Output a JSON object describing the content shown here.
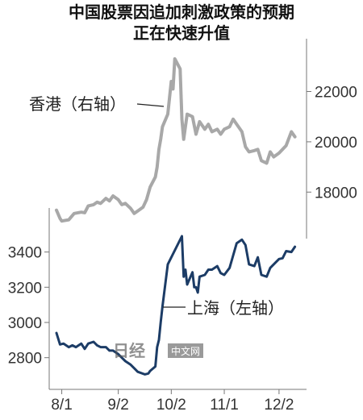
{
  "title_lines": [
    "中国股票因追加刺激政策的预期",
    "正在快速升值"
  ],
  "chart_data": {
    "type": "line",
    "title": "中国股票因追加刺激政策的预期 正在快速升值",
    "x_ticks": [
      "8/1",
      "9/2",
      "10/2",
      "11/1",
      "12/2"
    ],
    "x_range": [
      "2024-07-29",
      "2024-12-13"
    ],
    "left_axis": {
      "ticks": [
        2800,
        3000,
        3200,
        3400
      ],
      "range": [
        2620,
        3650
      ]
    },
    "right_axis": {
      "ticks": [
        18000,
        20000,
        22000
      ],
      "range": [
        16150,
        24100
      ]
    },
    "grid": false,
    "series": [
      {
        "name": "香港（右轴）",
        "axis": "right",
        "color": "#a8a8a8",
        "points": [
          [
            "2024-07-29",
            17280
          ],
          [
            "2024-07-31",
            16950
          ],
          [
            "2024-08-01",
            16850
          ],
          [
            "2024-08-05",
            16900
          ],
          [
            "2024-08-08",
            17150
          ],
          [
            "2024-08-12",
            17200
          ],
          [
            "2024-08-14",
            17180
          ],
          [
            "2024-08-16",
            17450
          ],
          [
            "2024-08-19",
            17500
          ],
          [
            "2024-08-21",
            17600
          ],
          [
            "2024-08-23",
            17550
          ],
          [
            "2024-08-26",
            17750
          ],
          [
            "2024-08-28",
            17650
          ],
          [
            "2024-08-30",
            17850
          ],
          [
            "2024-09-02",
            17700
          ],
          [
            "2024-09-04",
            17500
          ],
          [
            "2024-09-06",
            17550
          ],
          [
            "2024-09-09",
            17350
          ],
          [
            "2024-09-11",
            17150
          ],
          [
            "2024-09-13",
            17250
          ],
          [
            "2024-09-16",
            17400
          ],
          [
            "2024-09-18",
            17700
          ],
          [
            "2024-09-20",
            18200
          ],
          [
            "2024-09-23",
            18600
          ],
          [
            "2024-09-24",
            19000
          ],
          [
            "2024-09-25",
            19700
          ],
          [
            "2024-09-26",
            20100
          ],
          [
            "2024-09-27",
            20600
          ],
          [
            "2024-09-30",
            21100
          ],
          [
            "2024-10-02",
            22400
          ],
          [
            "2024-10-03",
            22100
          ],
          [
            "2024-10-04",
            23300
          ],
          [
            "2024-10-07",
            22900
          ],
          [
            "2024-10-08",
            20900
          ],
          [
            "2024-10-09",
            20100
          ],
          [
            "2024-10-11",
            21100
          ],
          [
            "2024-10-14",
            21000
          ],
          [
            "2024-10-16",
            20300
          ],
          [
            "2024-10-18",
            20800
          ],
          [
            "2024-10-21",
            20500
          ],
          [
            "2024-10-23",
            20700
          ],
          [
            "2024-10-25",
            20400
          ],
          [
            "2024-10-28",
            20500
          ],
          [
            "2024-10-30",
            20300
          ],
          [
            "2024-11-01",
            20500
          ],
          [
            "2024-11-04",
            20600
          ],
          [
            "2024-11-06",
            20900
          ],
          [
            "2024-11-08",
            20700
          ],
          [
            "2024-11-11",
            20400
          ],
          [
            "2024-11-13",
            19800
          ],
          [
            "2024-11-15",
            19600
          ],
          [
            "2024-11-18",
            19650
          ],
          [
            "2024-11-20",
            19700
          ],
          [
            "2024-11-22",
            19250
          ],
          [
            "2024-11-25",
            19150
          ],
          [
            "2024-11-27",
            19600
          ],
          [
            "2024-11-29",
            19400
          ],
          [
            "2024-12-02",
            19550
          ],
          [
            "2024-12-04",
            19700
          ],
          [
            "2024-12-06",
            19850
          ],
          [
            "2024-12-09",
            20400
          ],
          [
            "2024-12-11",
            20200
          ]
        ]
      },
      {
        "name": "上海（左轴）",
        "axis": "left",
        "color": "#1c3c66",
        "points": [
          [
            "2024-07-29",
            2940
          ],
          [
            "2024-07-31",
            2875
          ],
          [
            "2024-08-02",
            2880
          ],
          [
            "2024-08-05",
            2860
          ],
          [
            "2024-08-07",
            2870
          ],
          [
            "2024-08-09",
            2860
          ],
          [
            "2024-08-12",
            2880
          ],
          [
            "2024-08-14",
            2850
          ],
          [
            "2024-08-16",
            2880
          ],
          [
            "2024-08-19",
            2890
          ],
          [
            "2024-08-21",
            2870
          ],
          [
            "2024-08-23",
            2860
          ],
          [
            "2024-08-26",
            2860
          ],
          [
            "2024-08-28",
            2840
          ],
          [
            "2024-08-30",
            2840
          ],
          [
            "2024-09-02",
            2820
          ],
          [
            "2024-09-04",
            2800
          ],
          [
            "2024-09-06",
            2780
          ],
          [
            "2024-09-09",
            2760
          ],
          [
            "2024-09-11",
            2740
          ],
          [
            "2024-09-13",
            2720
          ],
          [
            "2024-09-17",
            2705
          ],
          [
            "2024-09-19",
            2710
          ],
          [
            "2024-09-20",
            2725
          ],
          [
            "2024-09-23",
            2750
          ],
          [
            "2024-09-24",
            2860
          ],
          [
            "2024-09-25",
            2900
          ],
          [
            "2024-09-26",
            3000
          ],
          [
            "2024-09-27",
            3090
          ],
          [
            "2024-09-30",
            3330
          ],
          [
            "2024-10-08",
            3490
          ],
          [
            "2024-10-09",
            3260
          ],
          [
            "2024-10-10",
            3300
          ],
          [
            "2024-10-11",
            3215
          ],
          [
            "2024-10-14",
            3285
          ],
          [
            "2024-10-15",
            3200
          ],
          [
            "2024-10-16",
            3200
          ],
          [
            "2024-10-17",
            3170
          ],
          [
            "2024-10-18",
            3260
          ],
          [
            "2024-10-21",
            3270
          ],
          [
            "2024-10-23",
            3300
          ],
          [
            "2024-10-25",
            3300
          ],
          [
            "2024-10-28",
            3320
          ],
          [
            "2024-10-30",
            3280
          ],
          [
            "2024-11-01",
            3270
          ],
          [
            "2024-11-04",
            3310
          ],
          [
            "2024-11-06",
            3380
          ],
          [
            "2024-11-08",
            3450
          ],
          [
            "2024-11-11",
            3470
          ],
          [
            "2024-11-13",
            3440
          ],
          [
            "2024-11-15",
            3330
          ],
          [
            "2024-11-18",
            3320
          ],
          [
            "2024-11-20",
            3370
          ],
          [
            "2024-11-22",
            3270
          ],
          [
            "2024-11-25",
            3260
          ],
          [
            "2024-11-27",
            3310
          ],
          [
            "2024-11-29",
            3330
          ],
          [
            "2024-12-02",
            3360
          ],
          [
            "2024-12-04",
            3365
          ],
          [
            "2024-12-06",
            3405
          ],
          [
            "2024-12-09",
            3400
          ],
          [
            "2024-12-11",
            3430
          ]
        ]
      }
    ],
    "annotations": [
      "香港（右轴）",
      "上海（左轴）"
    ]
  },
  "watermark": {
    "text": "中文网",
    "mark": "日经",
    "color": "#9a9a9a"
  },
  "colors": {
    "axis": "#777777",
    "background": "#ffffff"
  }
}
